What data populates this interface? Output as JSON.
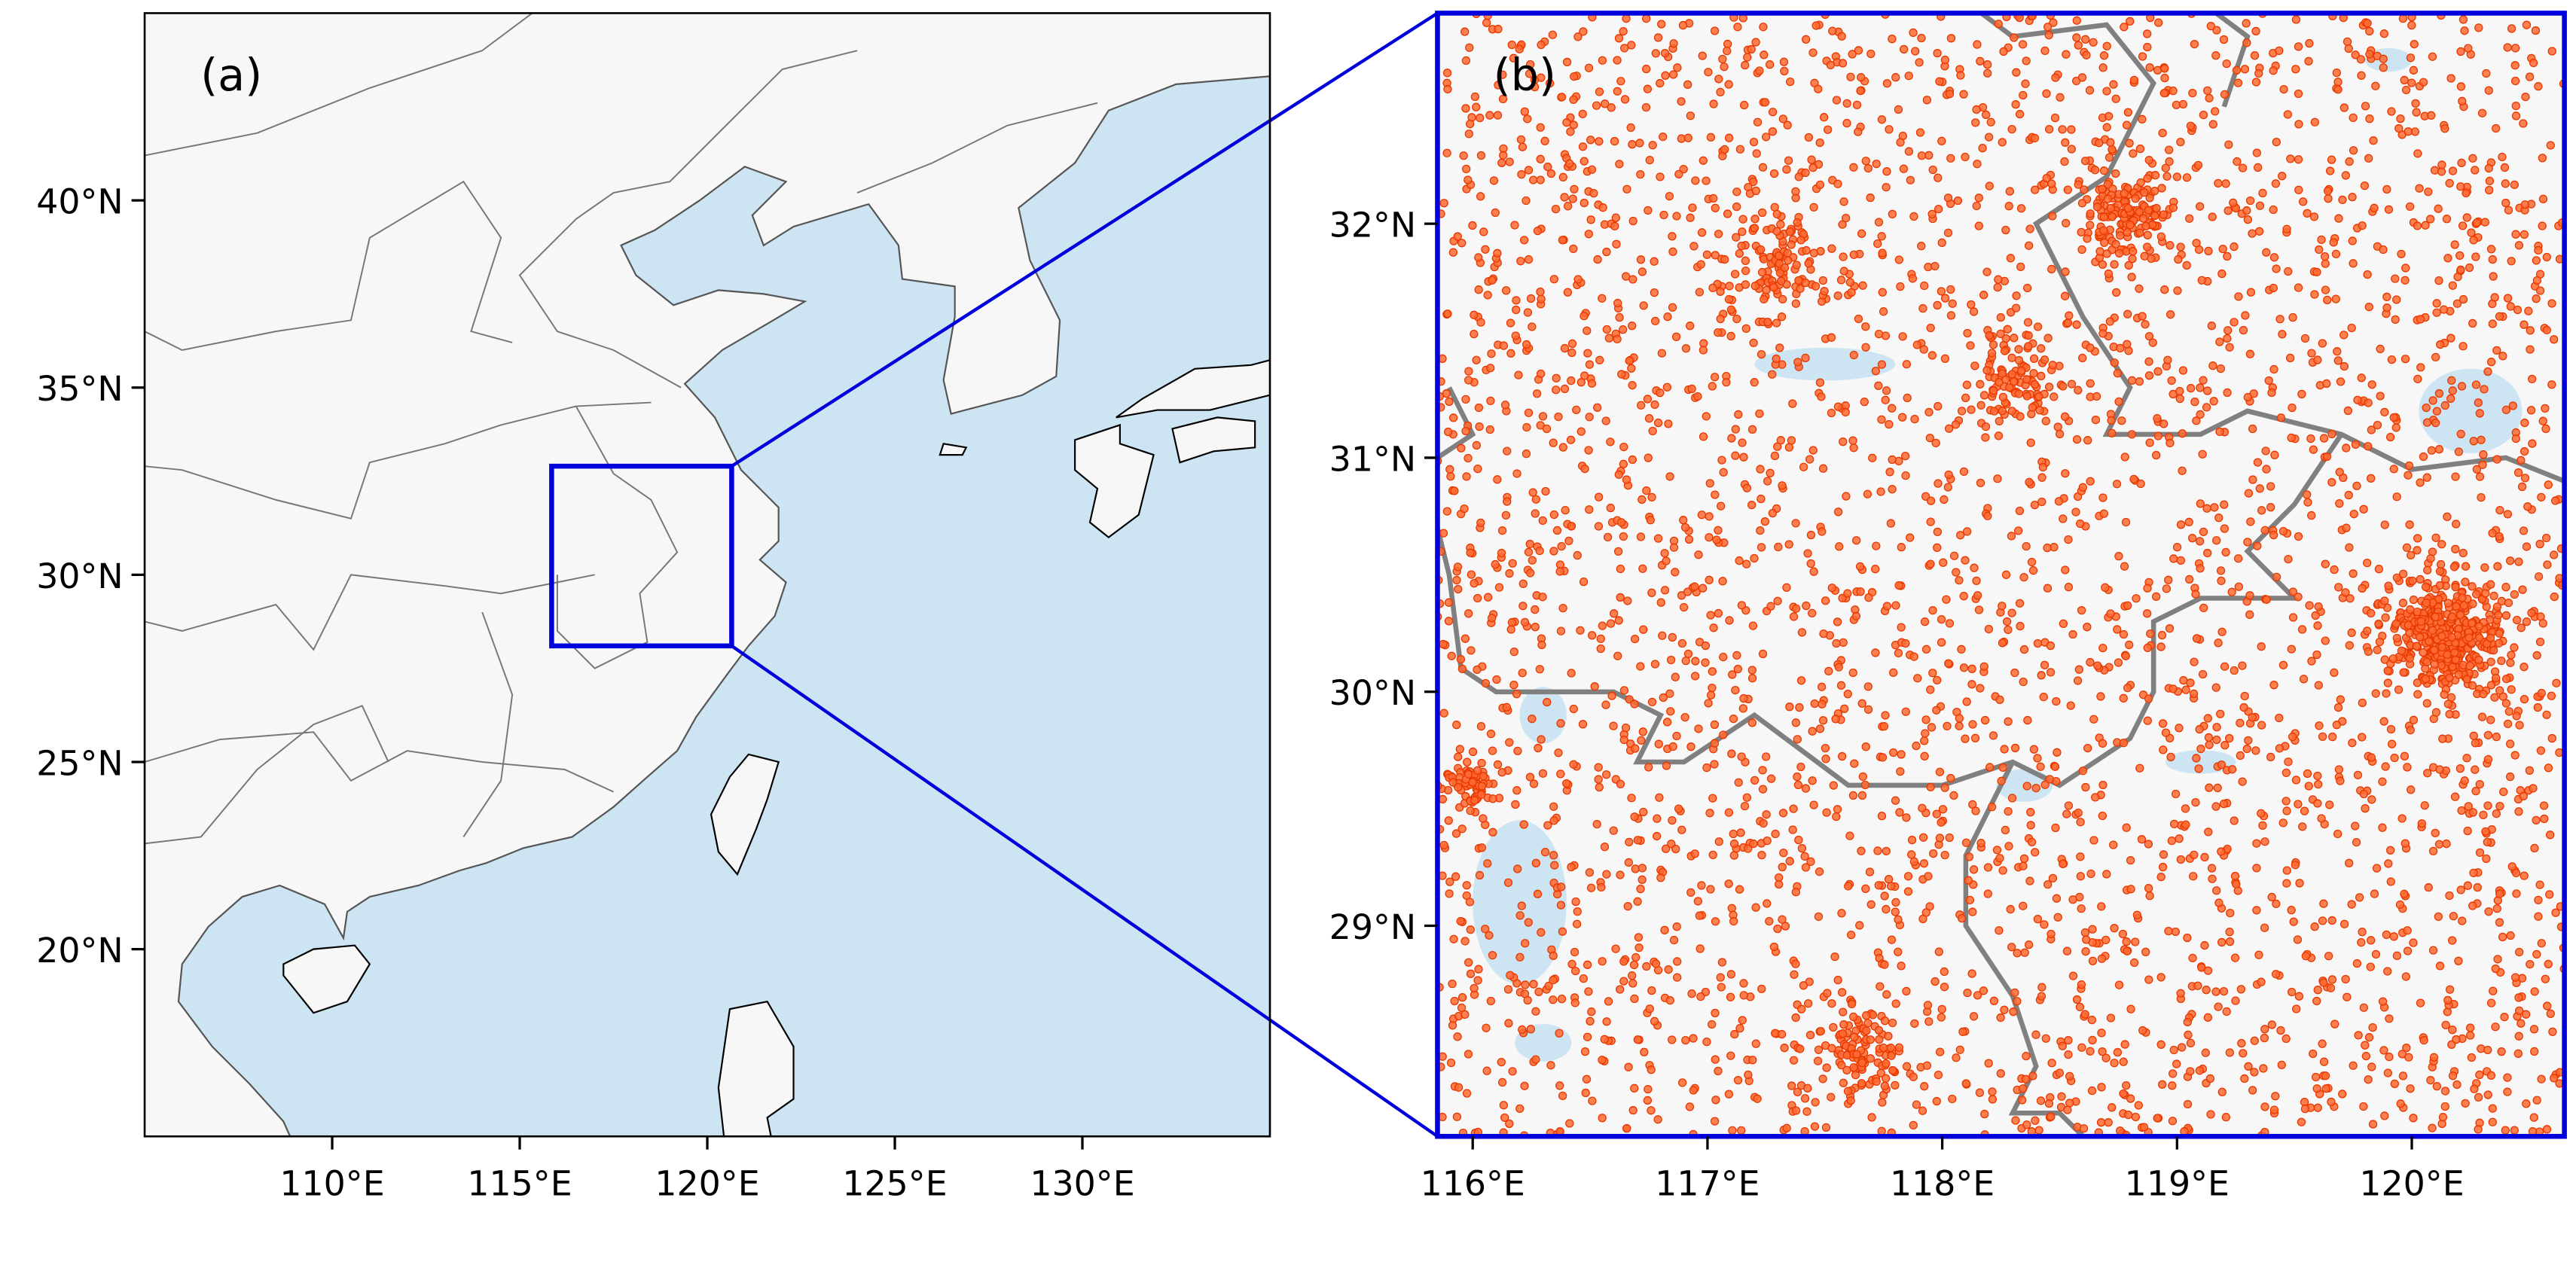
{
  "panels": [
    {
      "label": "(a)",
      "lon_range": [
        105,
        135
      ],
      "lat_range": [
        15,
        45
      ],
      "xticks": [
        {
          "value": 110,
          "label": "110°E"
        },
        {
          "value": 115,
          "label": "115°E"
        },
        {
          "value": 120,
          "label": "120°E"
        },
        {
          "value": 125,
          "label": "125°E"
        },
        {
          "value": 130,
          "label": "130°E"
        }
      ],
      "yticks": [
        {
          "value": 20,
          "label": "20°N"
        },
        {
          "value": 25,
          "label": "25°N"
        },
        {
          "value": 30,
          "label": "30°N"
        },
        {
          "value": 35,
          "label": "35°N"
        },
        {
          "value": 40,
          "label": "40°N"
        }
      ]
    },
    {
      "label": "(b)",
      "lon_range": [
        115.85,
        120.65
      ],
      "lat_range": [
        28.1,
        32.9
      ],
      "xticks": [
        {
          "value": 116,
          "label": "116°E"
        },
        {
          "value": 117,
          "label": "117°E"
        },
        {
          "value": 118,
          "label": "118°E"
        },
        {
          "value": 119,
          "label": "119°E"
        },
        {
          "value": 120,
          "label": "120°E"
        }
      ],
      "yticks": [
        {
          "value": 29,
          "label": "29°N"
        },
        {
          "value": 30,
          "label": "30°N"
        },
        {
          "value": 31,
          "label": "31°N"
        },
        {
          "value": 32,
          "label": "32°N"
        }
      ]
    }
  ]
}
